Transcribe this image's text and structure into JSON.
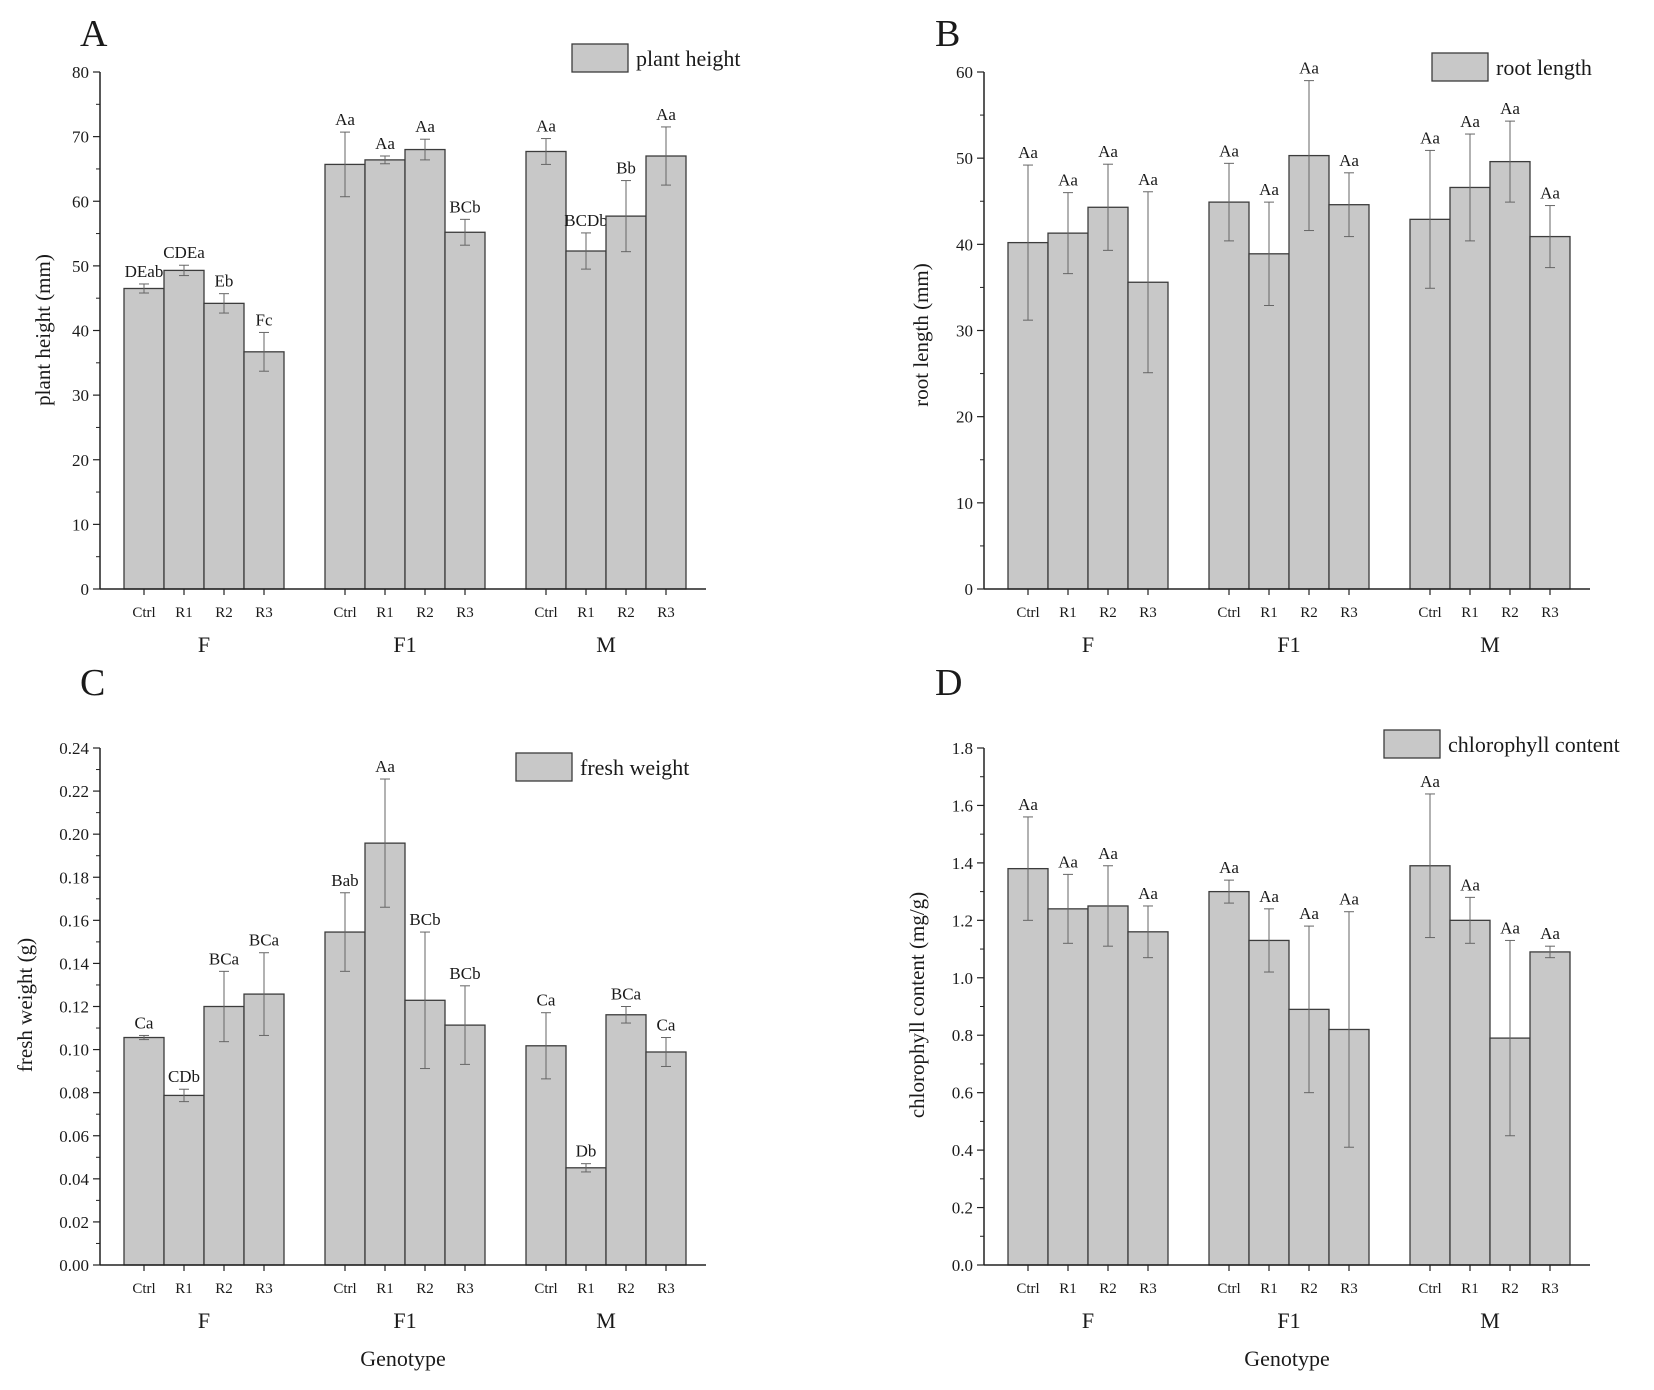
{
  "chart_data": [
    {
      "type": "bar",
      "panel": "A",
      "title": "",
      "ylabel": "plant height (mm)",
      "xlabel": "",
      "ylim": [
        0,
        80
      ],
      "yticks": [
        "0",
        "10",
        "20",
        "30",
        "40",
        "50",
        "60",
        "70",
        "80"
      ],
      "legend": "plant height",
      "legend_position": "top-right",
      "groups": [
        "F",
        "F1",
        "M"
      ],
      "categories": [
        "Ctrl",
        "R1",
        "R2",
        "R3"
      ],
      "series": [
        {
          "group": "F",
          "values": [
            46.5,
            49.3,
            44.2,
            36.7
          ],
          "errors": [
            0.7,
            0.8,
            1.5,
            3.0
          ],
          "labels": [
            "DEab",
            "CDEa",
            "Eb",
            "Fc"
          ]
        },
        {
          "group": "F1",
          "values": [
            65.7,
            66.4,
            68.0,
            55.2
          ],
          "errors": [
            5.0,
            0.6,
            1.6,
            2.0
          ],
          "labels": [
            "Aa",
            "Aa",
            "Aa",
            "BCb"
          ]
        },
        {
          "group": "M",
          "values": [
            67.7,
            52.3,
            57.7,
            67.0
          ],
          "errors": [
            2.0,
            2.8,
            5.5,
            4.5
          ],
          "labels": [
            "Aa",
            "BCDb",
            "Bb",
            "Aa"
          ]
        }
      ]
    },
    {
      "type": "bar",
      "panel": "B",
      "title": "",
      "ylabel": "root length (mm)",
      "xlabel": "",
      "ylim": [
        0,
        60
      ],
      "yticks": [
        "0",
        "10",
        "20",
        "30",
        "40",
        "50",
        "60"
      ],
      "legend": "root length",
      "legend_position": "top-right",
      "groups": [
        "F",
        "F1",
        "M"
      ],
      "categories": [
        "Ctrl",
        "R1",
        "R2",
        "R3"
      ],
      "series": [
        {
          "group": "F",
          "values": [
            40.2,
            41.3,
            44.3,
            35.6
          ],
          "errors": [
            9.0,
            4.7,
            5.0,
            10.5
          ],
          "labels": [
            "Aa",
            "Aa",
            "Aa",
            "Aa"
          ]
        },
        {
          "group": "F1",
          "values": [
            44.9,
            38.9,
            50.3,
            44.6
          ],
          "errors": [
            4.5,
            6.0,
            8.7,
            3.7
          ],
          "labels": [
            "Aa",
            "Aa",
            "Aa",
            "Aa"
          ]
        },
        {
          "group": "M",
          "values": [
            42.9,
            46.6,
            49.6,
            40.9
          ],
          "errors": [
            8.0,
            6.2,
            4.7,
            3.6
          ],
          "labels": [
            "Aa",
            "Aa",
            "Aa",
            "Aa"
          ]
        }
      ]
    },
    {
      "type": "bar",
      "panel": "C",
      "title": "",
      "ylabel": "fresh weight (g)",
      "xlabel": "Genotype",
      "ylim": [
        0,
        0.25
      ],
      "yticks": [
        "0.00",
        "0.02",
        "0.04",
        "0.06",
        "0.08",
        "0.10",
        "0.12",
        "0.14",
        "0.16",
        "0.18",
        "0.20",
        "0.22",
        "0.24"
      ],
      "legend": "fresh weight",
      "legend_position": "top-right",
      "groups": [
        "F",
        "F1",
        "M"
      ],
      "categories": [
        "Ctrl",
        "R1",
        "R2",
        "R3"
      ],
      "series": [
        {
          "group": "F",
          "values": [
            0.11,
            0.082,
            0.125,
            0.131
          ],
          "errors": [
            0.001,
            0.003,
            0.017,
            0.02
          ],
          "labels": [
            "Ca",
            "CDb",
            "BCa",
            "BCa"
          ]
        },
        {
          "group": "F1",
          "values": [
            0.161,
            0.204,
            0.128,
            0.116
          ],
          "errors": [
            0.019,
            0.031,
            0.033,
            0.019
          ],
          "labels": [
            "Bab",
            "Aa",
            "BCb",
            "BCb"
          ]
        },
        {
          "group": "M",
          "values": [
            0.106,
            0.047,
            0.121,
            0.103
          ],
          "errors": [
            0.016,
            0.002,
            0.004,
            0.007
          ],
          "labels": [
            "Ca",
            "Db",
            "BCa",
            "Ca"
          ]
        }
      ]
    },
    {
      "type": "bar",
      "panel": "D",
      "title": "",
      "ylabel": "chlorophyll content (mg/g)",
      "xlabel": "Genotype",
      "ylim": [
        0,
        1.8
      ],
      "yticks": [
        "0.0",
        "0.2",
        "0.4",
        "0.6",
        "0.8",
        "1.0",
        "1.2",
        "1.4",
        "1.6",
        "1.8"
      ],
      "legend": "chlorophyll content",
      "legend_position": "top-right",
      "groups": [
        "F",
        "F1",
        "M"
      ],
      "categories": [
        "Ctrl",
        "R1",
        "R2",
        "R3"
      ],
      "series": [
        {
          "group": "F",
          "values": [
            1.38,
            1.24,
            1.25,
            1.16
          ],
          "errors": [
            0.18,
            0.12,
            0.14,
            0.09
          ],
          "labels": [
            "Aa",
            "Aa",
            "Aa",
            "Aa"
          ]
        },
        {
          "group": "F1",
          "values": [
            1.3,
            1.13,
            0.89,
            0.82
          ],
          "errors": [
            0.04,
            0.11,
            0.29,
            0.41
          ],
          "labels": [
            "Aa",
            "Aa",
            "Aa",
            "Aa"
          ]
        },
        {
          "group": "M",
          "values": [
            1.39,
            1.2,
            0.79,
            1.09
          ],
          "errors": [
            0.25,
            0.08,
            0.34,
            0.02
          ],
          "labels": [
            "Aa",
            "Aa",
            "Aa",
            "Aa"
          ]
        }
      ]
    }
  ],
  "colors": {
    "bar_fill": "#c8c8c8",
    "bar_stroke": "#3c3c3c",
    "axis": "#222222",
    "error_bar": "#666666",
    "text": "#1a1a1a"
  }
}
